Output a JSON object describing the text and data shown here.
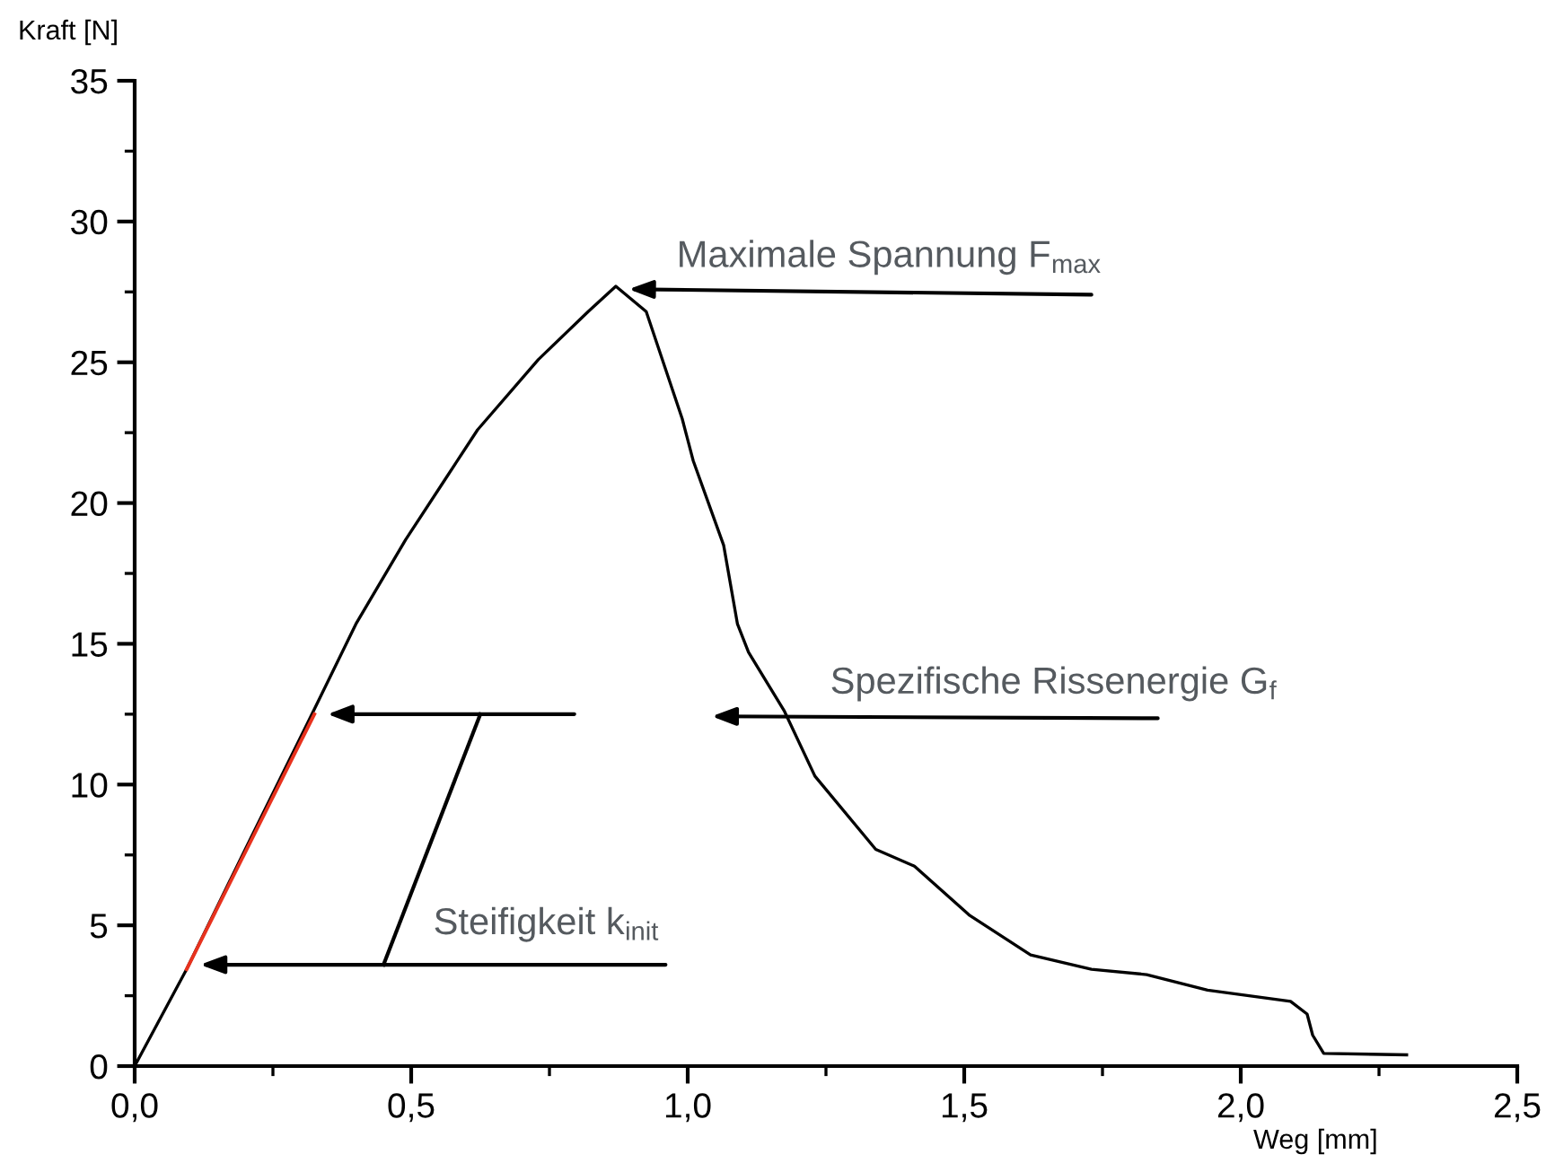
{
  "chart_data": {
    "type": "line",
    "xlabel": "Weg [mm]",
    "ylabel": "Kraft [N]",
    "xlim": [
      0,
      2.5
    ],
    "ylim": [
      0,
      35
    ],
    "xticks": [
      {
        "value": 0,
        "label": "0,0"
      },
      {
        "value": 0.25,
        "label": null
      },
      {
        "value": 0.5,
        "label": "0,5"
      },
      {
        "value": 0.75,
        "label": null
      },
      {
        "value": 1.0,
        "label": "1,0"
      },
      {
        "value": 1.25,
        "label": null
      },
      {
        "value": 1.5,
        "label": "1,5"
      },
      {
        "value": 1.75,
        "label": null
      },
      {
        "value": 2.0,
        "label": "2,0"
      },
      {
        "value": 2.25,
        "label": null
      },
      {
        "value": 2.5,
        "label": "2,5"
      }
    ],
    "yticks": [
      0,
      {
        "value": 2.5,
        "label": null
      },
      5,
      {
        "value": 7.5,
        "label": null
      },
      10,
      {
        "value": 12.5,
        "label": null
      },
      15,
      {
        "value": 17.5,
        "label": null
      },
      20,
      {
        "value": 22.5,
        "label": null
      },
      25,
      {
        "value": 27.5,
        "label": null
      },
      30,
      {
        "value": 32.5,
        "label": null
      },
      35
    ],
    "grid": false,
    "legend": false,
    "series": [
      {
        "color": "#000000",
        "x": [
          0,
          0.094,
          0.2,
          0.318,
          0.4,
          0.49,
          0.56,
          0.62,
          0.73,
          0.82,
          0.87,
          0.925,
          0.99,
          1.01,
          1.065,
          1.09,
          1.11,
          1.175,
          1.23,
          1.34,
          1.41,
          1.51,
          1.62,
          1.73,
          1.83,
          1.94,
          2.09,
          2.12,
          2.13,
          2.15,
          2.3
        ],
        "values": [
          0,
          3.44,
          7.7,
          12.4,
          15.7,
          18.7,
          20.8,
          22.6,
          25.1,
          26.8,
          27.7,
          26.8,
          23.0,
          21.5,
          18.5,
          15.7,
          14.7,
          12.6,
          10.3,
          7.7,
          7.1,
          5.35,
          3.95,
          3.44,
          3.25,
          2.7,
          2.3,
          1.85,
          1.1,
          0.45,
          0.4
        ]
      },
      {
        "color": "#e8321e",
        "x": [
          0.094,
          0.325
        ],
        "values": [
          3.44,
          12.5
        ]
      }
    ],
    "annotations": [
      {
        "text": "Maximale Spannung F$_{max}$",
        "x": 0.88,
        "y": 27.6
      },
      "Spezifische Rissenergie G$_{f}$",
      {
        "text": "Steifigkeit k$_{init}$",
        "x": 0.1,
        "y": 3.6
      }
    ]
  }
}
